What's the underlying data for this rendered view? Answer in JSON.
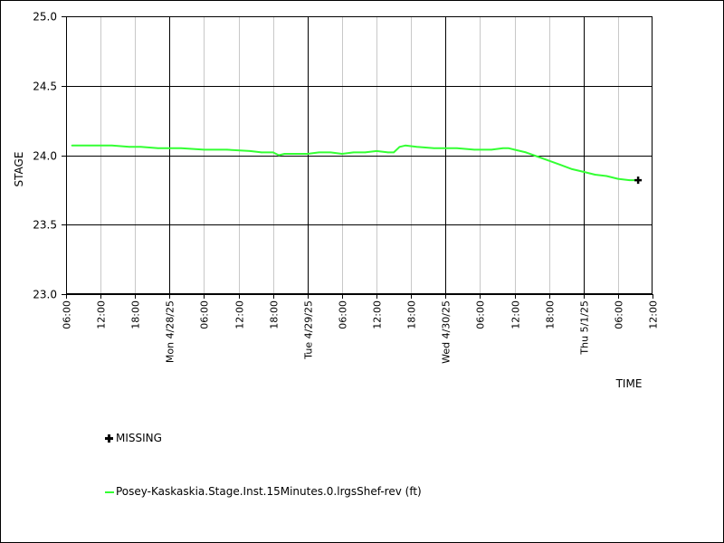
{
  "chart_data": {
    "type": "line",
    "ylabel": "STAGE",
    "xlabel": "TIME",
    "ylim": [
      23.0,
      25.0
    ],
    "y_ticks": [
      "23.0",
      "23.5",
      "24.0",
      "24.5",
      "25.0"
    ],
    "x_range_hours": [
      6,
      138
    ],
    "x_tick_labels": [
      {
        "hour": 6,
        "label": "06:00",
        "major": false
      },
      {
        "hour": 12,
        "label": "12:00",
        "major": false
      },
      {
        "hour": 18,
        "label": "18:00",
        "major": false
      },
      {
        "hour": 24,
        "label": "Mon 4/28/25",
        "major": true
      },
      {
        "hour": 30,
        "label": "06:00",
        "major": false
      },
      {
        "hour": 36,
        "label": "12:00",
        "major": false
      },
      {
        "hour": 42,
        "label": "18:00",
        "major": false
      },
      {
        "hour": 48,
        "label": "Tue 4/29/25",
        "major": true
      },
      {
        "hour": 54,
        "label": "06:00",
        "major": false
      },
      {
        "hour": 60,
        "label": "12:00",
        "major": false
      },
      {
        "hour": 66,
        "label": "18:00",
        "major": false
      },
      {
        "hour": 72,
        "label": "Wed 4/30/25",
        "major": true
      },
      {
        "hour": 78,
        "label": "06:00",
        "major": false
      },
      {
        "hour": 84,
        "label": "12:00",
        "major": false
      },
      {
        "hour": 90,
        "label": "18:00",
        "major": false
      },
      {
        "hour": 96,
        "label": "Thu 5/1/25",
        "major": true
      },
      {
        "hour": 102,
        "label": "06:00",
        "major": false
      },
      {
        "hour": 108,
        "label": "12:00",
        "major": false
      }
    ],
    "grid": true,
    "series": [
      {
        "name": "Posey-Kaskaskia.Stage.Inst.15Minutes.0.lrgsShef-rev (ft)",
        "color": "#33ff33",
        "x": [
          7,
          10,
          14,
          17,
          19,
          22,
          26,
          30,
          34,
          38,
          40,
          42,
          43,
          44,
          46,
          48,
          50,
          52,
          54,
          56,
          58,
          60,
          62,
          63,
          64,
          65,
          67,
          70,
          72,
          74,
          77,
          80,
          82,
          83,
          84,
          85,
          86,
          88,
          90,
          92,
          94,
          96,
          98,
          100,
          102,
          104,
          105
        ],
        "values": [
          24.07,
          24.07,
          24.07,
          24.06,
          24.06,
          24.05,
          24.05,
          24.04,
          24.04,
          24.03,
          24.02,
          24.02,
          24.0,
          24.01,
          24.01,
          24.01,
          24.02,
          24.02,
          24.01,
          24.02,
          24.02,
          24.03,
          24.02,
          24.02,
          24.06,
          24.07,
          24.06,
          24.05,
          24.05,
          24.05,
          24.04,
          24.04,
          24.05,
          24.05,
          24.04,
          24.03,
          24.02,
          23.99,
          23.96,
          23.93,
          23.9,
          23.88,
          23.86,
          23.85,
          23.83,
          23.82,
          23.82
        ]
      }
    ],
    "missing_points": [
      {
        "x": 105.5,
        "y": 23.82
      }
    ],
    "legend_placement": "bottom-left"
  },
  "legend": {
    "missing_label": "MISSING",
    "series_label": "Posey-Kaskaskia.Stage.Inst.15Minutes.0.lrgsShef-rev (ft)"
  }
}
